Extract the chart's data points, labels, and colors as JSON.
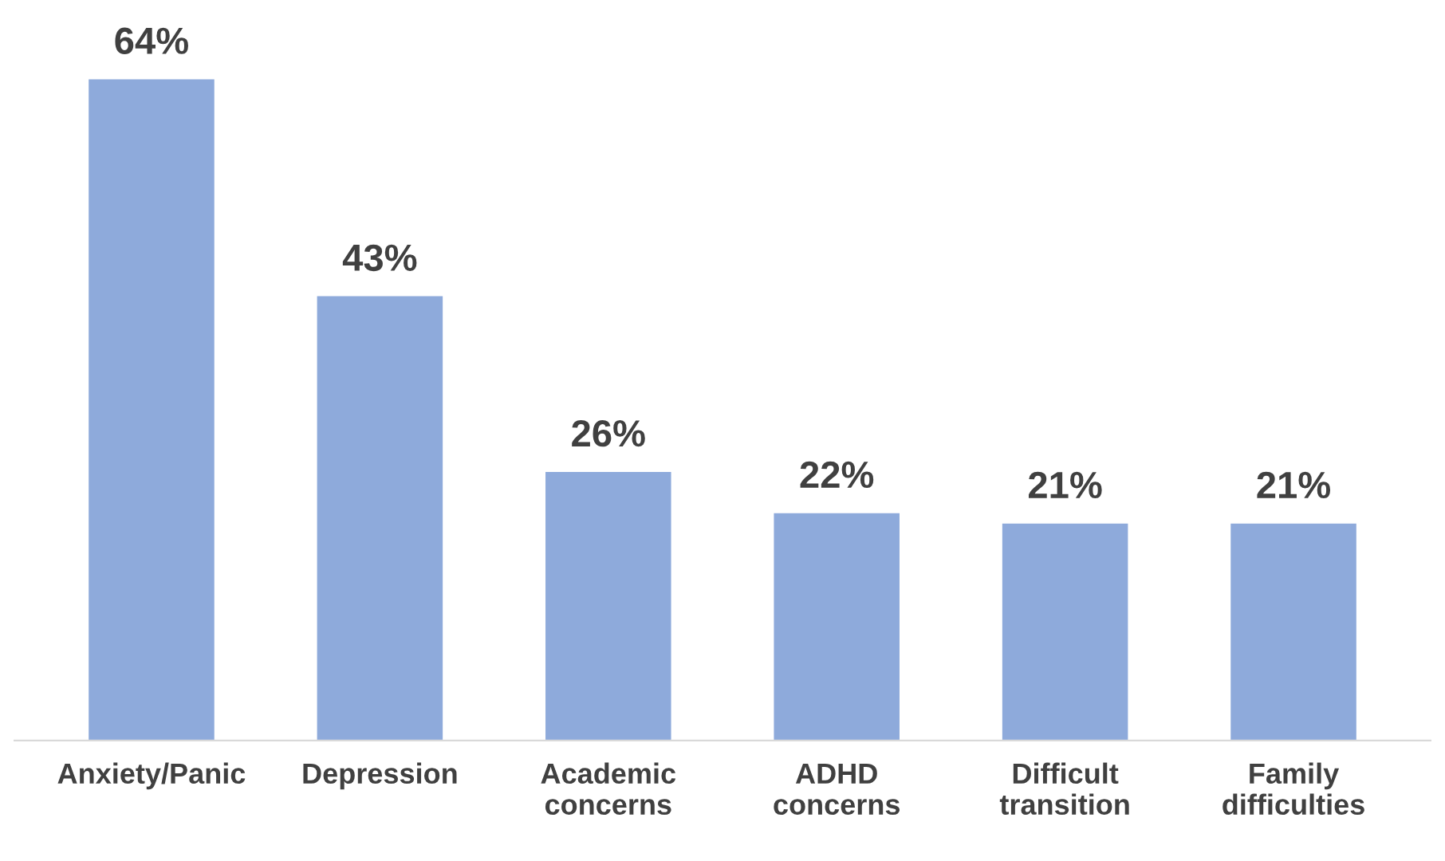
{
  "chart_data": {
    "type": "bar",
    "categories": [
      "Anxiety/Panic",
      "Depression",
      "Academic\nconcerns",
      "ADHD\nconcerns",
      "Difficult\ntransition",
      "Family\ndifficulties"
    ],
    "values": [
      64,
      43,
      26,
      22,
      21,
      21
    ],
    "value_labels": [
      "64%",
      "43%",
      "26%",
      "22%",
      "21%",
      "21%"
    ],
    "color": "#8eaadb",
    "grid": false,
    "legend": false
  }
}
